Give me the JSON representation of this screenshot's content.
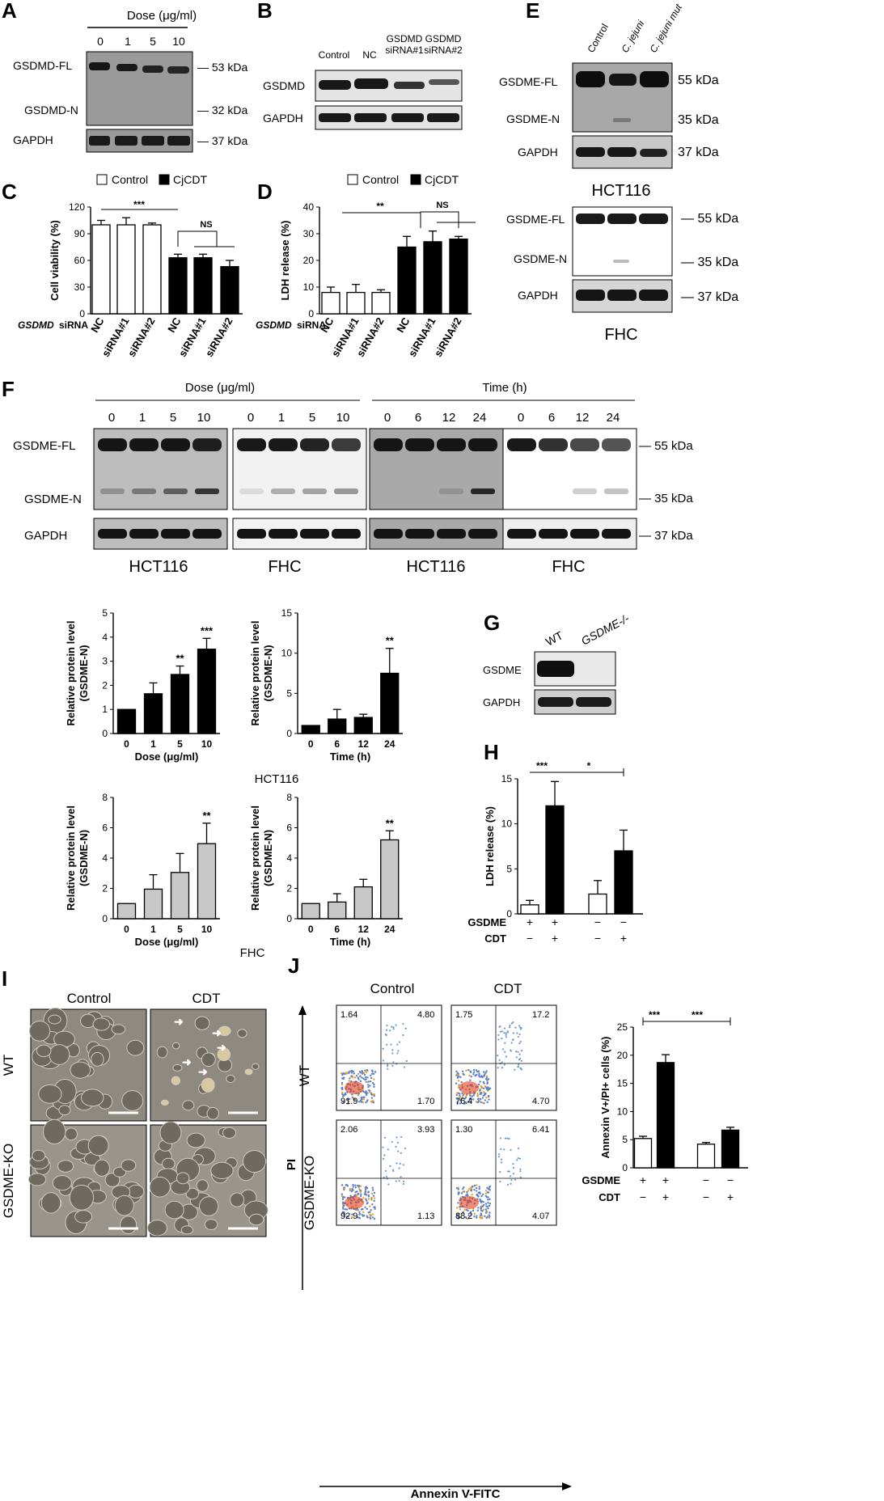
{
  "panels": {
    "A": "A",
    "B": "B",
    "C": "C",
    "D": "D",
    "E": "E",
    "F": "F",
    "G": "G",
    "H": "H",
    "I": "I",
    "J": "J"
  },
  "blot_a": {
    "header": "Dose (μg/ml)",
    "lanes": [
      "0",
      "1",
      "5",
      "10"
    ],
    "rows": [
      "GSDMD-FL",
      "GSDMD-N",
      "GAPDH"
    ],
    "markers": [
      "— 53 kDa",
      "— 32 kDa",
      "— 37 kDa"
    ]
  },
  "blot_b": {
    "lanes": [
      "Control",
      "NC",
      "GSDMD siRNA#1",
      "GSDMD siRNA#2"
    ],
    "rows": [
      "GSDMD",
      "GAPDH"
    ]
  },
  "blot_e": {
    "lanes": [
      "Control",
      "C. jejuni",
      "C. jejuni mut"
    ],
    "rows": [
      "GSDME-FL",
      "GSDME-N",
      "GAPDH"
    ],
    "markers": [
      "55 kDa",
      "35 kDa",
      "37 kDa"
    ],
    "cell_top": "HCT116",
    "cell_bottom": "FHC"
  },
  "blot_f": {
    "dose_header": "Dose (μg/ml)",
    "time_header": "Time (h)",
    "dose_lanes": [
      "0",
      "1",
      "5",
      "10"
    ],
    "time_lanes": [
      "0",
      "6",
      "12",
      "24"
    ],
    "rows": [
      "GSDME-FL",
      "GSDME-N",
      "GAPDH"
    ],
    "markers": [
      "55 kDa",
      "35 kDa",
      "37 kDa"
    ],
    "cell_labels": [
      "HCT116",
      "FHC",
      "HCT116",
      "FHC"
    ],
    "group_hct": "HCT116",
    "group_fhc": "FHC"
  },
  "blot_g": {
    "lanes": [
      "WT",
      "GSDME-/-"
    ],
    "rows": [
      "GSDME",
      "GAPDH"
    ]
  },
  "panel_i": {
    "cols": [
      "Control",
      "CDT"
    ],
    "rows": [
      "WT",
      "GSDME-KO"
    ]
  },
  "panel_j": {
    "cols": [
      "Control",
      "CDT"
    ],
    "rows": [
      "WT",
      "GSDME-KO"
    ],
    "x_axis": "Annexin V-FITC",
    "y_axis": "PI",
    "quadrants": [
      [
        "1.64",
        "4.80",
        "91.9",
        "1.70"
      ],
      [
        "1.75",
        "17.2",
        "76.4",
        "4.70"
      ],
      [
        "2.06",
        "3.93",
        "92.9",
        "1.13"
      ],
      [
        "1.30",
        "6.41",
        "88.2",
        "4.07"
      ]
    ]
  },
  "chart_data": [
    {
      "id": "C",
      "type": "bar",
      "ylabel": "Cell viability (%)",
      "ylim": [
        0,
        120
      ],
      "yticks": [
        "0",
        "30",
        "60",
        "90",
        "120"
      ],
      "categories": [
        "NC",
        "siRNA#1",
        "siRNA#2",
        "NC",
        "siRNA#1",
        "siRNA#2"
      ],
      "values": [
        100,
        100,
        100,
        63,
        63,
        53
      ],
      "errors": [
        5,
        8,
        2,
        4,
        4,
        7
      ],
      "fills": [
        "white",
        "white",
        "white",
        "black",
        "black",
        "black"
      ],
      "legend": [
        "Control",
        "CjCDT"
      ],
      "row_label": "GSDMD siRNA",
      "sig": [
        "***",
        "NS"
      ]
    },
    {
      "id": "D",
      "type": "bar",
      "ylabel": "LDH release (%)",
      "ylim": [
        0,
        40
      ],
      "yticks": [
        "0",
        "10",
        "20",
        "30",
        "40"
      ],
      "categories": [
        "NC",
        "siRNA#1",
        "siRNA#2",
        "NC",
        "siRNA#1",
        "siRNA#2"
      ],
      "values": [
        8,
        8,
        8,
        25,
        27,
        28
      ],
      "errors": [
        2,
        3,
        1,
        4,
        4,
        1
      ],
      "fills": [
        "white",
        "white",
        "white",
        "black",
        "black",
        "black"
      ],
      "legend": [
        "Control",
        "CjCDT"
      ],
      "row_label": "GSDMD siRNA",
      "sig": [
        "**",
        "NS"
      ]
    },
    {
      "id": "F1",
      "type": "bar",
      "ylabel": "Relative protein level (GSDME-N)",
      "xlabel": "Dose (μg/ml)",
      "ylim": [
        0,
        5
      ],
      "yticks": [
        "0",
        "1",
        "2",
        "3",
        "4",
        "5"
      ],
      "categories": [
        "0",
        "1",
        "5",
        "10"
      ],
      "values": [
        1.0,
        1.65,
        2.45,
        3.5
      ],
      "errors": [
        0,
        0.45,
        0.35,
        0.45
      ],
      "stars": [
        "",
        "",
        "**",
        "***"
      ],
      "fill": "#000000"
    },
    {
      "id": "F2",
      "type": "bar",
      "ylabel": "Relative protein level (GSDME-N)",
      "xlabel": "Time (h)",
      "ylim": [
        0,
        15
      ],
      "yticks": [
        "0",
        "5",
        "10",
        "15"
      ],
      "categories": [
        "0",
        "6",
        "12",
        "24"
      ],
      "values": [
        1.0,
        1.8,
        2.0,
        7.5
      ],
      "errors": [
        0,
        1.2,
        0.4,
        3.1
      ],
      "stars": [
        "",
        "",
        "",
        "**"
      ],
      "fill": "#000000"
    },
    {
      "id": "F3",
      "type": "bar",
      "ylabel": "Relative protein level (GSDME-N)",
      "xlabel": "Dose (μg/ml)",
      "ylim": [
        0,
        8
      ],
      "yticks": [
        "0",
        "2",
        "4",
        "6",
        "8"
      ],
      "categories": [
        "0",
        "1",
        "5",
        "10"
      ],
      "values": [
        1.0,
        1.95,
        3.05,
        4.95
      ],
      "errors": [
        0,
        0.95,
        1.25,
        1.35
      ],
      "stars": [
        "",
        "",
        "",
        "**"
      ],
      "fill": "#c8c8c8"
    },
    {
      "id": "F4",
      "type": "bar",
      "ylabel": "Relative protein level (GSDME-N)",
      "xlabel": "Time (h)",
      "ylim": [
        0,
        8
      ],
      "yticks": [
        "0",
        "2",
        "4",
        "6",
        "8"
      ],
      "categories": [
        "0",
        "6",
        "12",
        "24"
      ],
      "values": [
        1.0,
        1.1,
        2.1,
        5.2
      ],
      "errors": [
        0,
        0.55,
        0.5,
        0.6
      ],
      "stars": [
        "",
        "",
        "",
        "**"
      ],
      "fill": "#c8c8c8"
    },
    {
      "id": "H",
      "type": "bar",
      "ylabel": "LDH release (%)",
      "ylim": [
        0,
        15
      ],
      "yticks": [
        "0",
        "5",
        "10",
        "15"
      ],
      "values": [
        1.0,
        12.0,
        2.2,
        7.0
      ],
      "errors": [
        0.5,
        2.7,
        1.5,
        2.3
      ],
      "fills": [
        "white",
        "black",
        "white",
        "black"
      ],
      "rows": [
        {
          "label": "GSDME",
          "signs": [
            "+",
            "+",
            "−",
            "−"
          ]
        },
        {
          "label": "CDT",
          "signs": [
            "−",
            "+",
            "−",
            "+"
          ]
        }
      ],
      "sig": [
        "***",
        "*"
      ]
    },
    {
      "id": "J",
      "type": "bar",
      "ylabel": "Annexin V+/PI+ cells (%)",
      "ylim": [
        0,
        25
      ],
      "yticks": [
        "0",
        "5",
        "10",
        "15",
        "20",
        "25"
      ],
      "values": [
        5.2,
        18.7,
        4.2,
        6.7
      ],
      "errors": [
        0.4,
        1.4,
        0.3,
        0.5
      ],
      "fills": [
        "white",
        "black",
        "white",
        "black"
      ],
      "rows": [
        {
          "label": "GSDME",
          "signs": [
            "+",
            "+",
            "−",
            "−"
          ]
        },
        {
          "label": "CDT",
          "signs": [
            "−",
            "+",
            "−",
            "+"
          ]
        }
      ],
      "sig": [
        "***",
        "***"
      ]
    }
  ]
}
